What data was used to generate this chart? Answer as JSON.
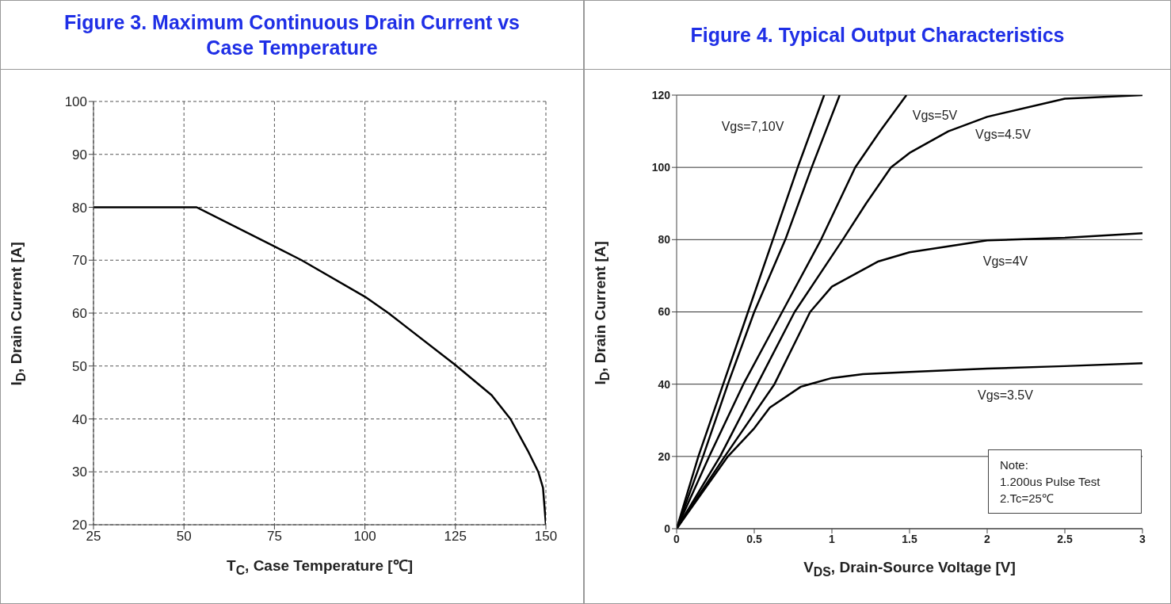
{
  "chart_data": [
    {
      "type": "line",
      "title": "Figure 3. Maximum Continuous Drain Current vs Case Temperature",
      "xlabel": "T$_{C}$, Case Temperature [℃]",
      "ylabel": "I$_{D}$, Drain Current [A]",
      "xlim": [
        25,
        150
      ],
      "xticks": [
        25,
        50,
        75,
        100,
        125,
        150
      ],
      "ylim": [
        20,
        100
      ],
      "yticks": [
        20,
        30,
        40,
        50,
        60,
        70,
        80,
        90,
        100
      ],
      "grid": true,
      "marker": "none",
      "line_style": "solid",
      "series": [
        {
          "color": "#000000",
          "x": [
            25,
            53.5,
            75,
            82.5,
            100,
            106.5,
            125,
            135,
            140.2,
            145,
            147.9,
            149.2,
            150
          ],
          "values": [
            80,
            80,
            72.6,
            70,
            63.1,
            60,
            50.2,
            44.5,
            40,
            34,
            30,
            27,
            20
          ]
        }
      ]
    },
    {
      "type": "line",
      "title": "Figure 4. Typical Output Characteristics",
      "xlabel": "V$_{DS}$, Drain-Source Voltage [V]",
      "ylabel": "I$_{D}$, Drain Current [A]",
      "xlim": [
        0,
        3
      ],
      "xticks": [
        0,
        0.5,
        1,
        1.5,
        2,
        2.5,
        3
      ],
      "ylim": [
        0,
        120
      ],
      "yticks": [
        0,
        20,
        40,
        60,
        80,
        100,
        120
      ],
      "grid": "y",
      "marker": "none",
      "line_style": "solid",
      "series": [
        {
          "color": "#000000",
          "x": [
            0,
            0.14,
            0.3,
            0.46,
            0.62,
            0.78,
            0.95
          ],
          "values": [
            0,
            20,
            40,
            60,
            80,
            100,
            120
          ]
        },
        {
          "color": "#000000",
          "x": [
            0,
            0.17,
            0.33,
            0.5,
            0.7,
            0.87,
            1.05
          ],
          "values": [
            0,
            20,
            40,
            60,
            80,
            100,
            120
          ]
        },
        {
          "color": "#000000",
          "x": [
            0,
            0.21,
            0.43,
            0.68,
            0.93,
            1.15,
            1.31,
            1.48
          ],
          "values": [
            0,
            20,
            40,
            60,
            80,
            100,
            110,
            120
          ]
        },
        {
          "color": "#000000",
          "x": [
            0,
            0.28,
            0.52,
            0.76,
            1.07,
            1.22,
            1.38,
            1.5,
            1.75,
            2,
            2.5,
            3
          ],
          "values": [
            0,
            20,
            40,
            60,
            80,
            90,
            100,
            104,
            110,
            114,
            119,
            120
          ]
        },
        {
          "color": "#000000",
          "x": [
            0,
            0.31,
            0.63,
            0.86,
            1,
            1.3,
            1.5,
            2,
            2.5,
            3
          ],
          "values": [
            0,
            20,
            40,
            60,
            67,
            74,
            76.5,
            79.8,
            80.5,
            81.8
          ]
        },
        {
          "color": "#000000",
          "x": [
            0,
            0.33,
            0.5,
            0.6,
            0.8,
            1,
            1.2,
            1.5,
            2,
            2.5,
            3
          ],
          "values": [
            0,
            20,
            27.8,
            33.5,
            39.3,
            41.7,
            42.8,
            43.4,
            44.3,
            45,
            45.8
          ]
        }
      ],
      "annotations": [
        "Vgs=7,10V",
        "Vgs=5V",
        "Vgs=4.5V",
        "Vgs=4V",
        "Vgs=3.5V",
        "Note:",
        "1.200us Pulse Test",
        "2.Tc=25℃"
      ]
    }
  ]
}
